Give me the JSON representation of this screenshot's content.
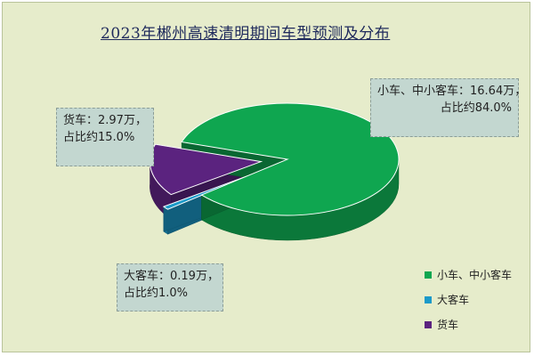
{
  "colors": {
    "background": "#e6eccb",
    "title": "#1f2a5c",
    "car": "#0fa650",
    "bus": "#1b9ac9",
    "truck": "#5b237f"
  },
  "chart_data": {
    "type": "pie",
    "title": "2023年郴州高速清明期间车型预测及分布",
    "categories": [
      "小车、中小客车",
      "大客车",
      "货车"
    ],
    "values": [
      16.64,
      0.19,
      2.97
    ],
    "percentages": [
      84.0,
      1.0,
      15.0
    ],
    "unit": "万",
    "legend_position": "bottom-right",
    "exploded": true,
    "three_d": true,
    "annotations": [
      {
        "line1": "小车、中小客车：16.64万，",
        "line2": "占比约84.0%"
      },
      {
        "line1": "大客车：0.19万，",
        "line2": "占比约1.0%"
      },
      {
        "line1": "货车：2.97万，",
        "line2": "占比约15.0%"
      }
    ]
  }
}
